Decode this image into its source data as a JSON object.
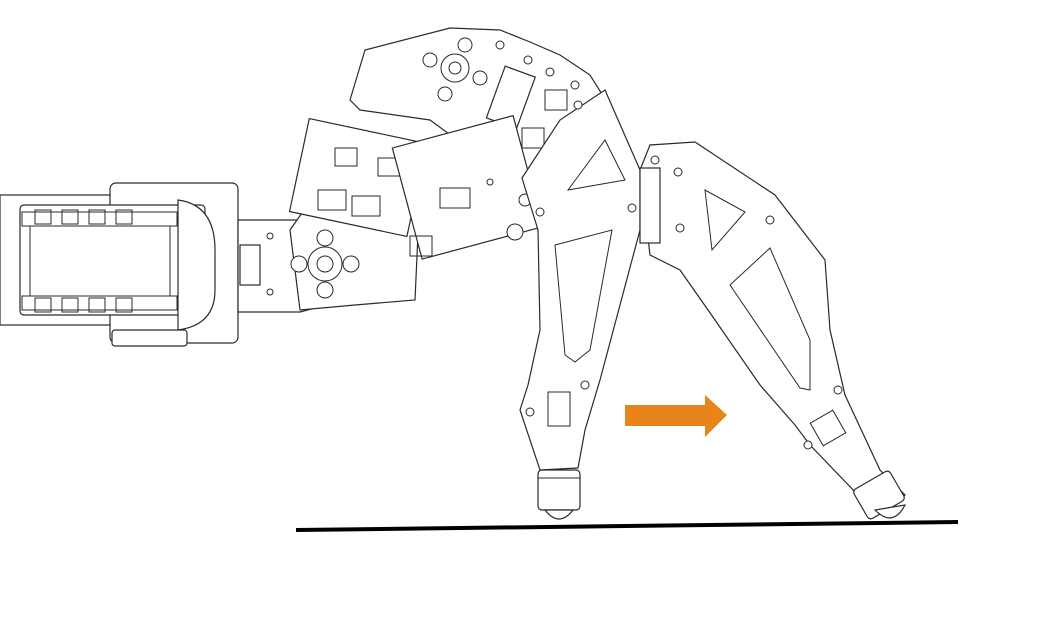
{
  "figure": {
    "subject": "robot-leg-line-drawing",
    "stroke_color": "#2a2a2a",
    "background": "#ffffff",
    "arrow_color": "#e8841a",
    "ground_color": "#000000",
    "arrow_direction": "right"
  }
}
